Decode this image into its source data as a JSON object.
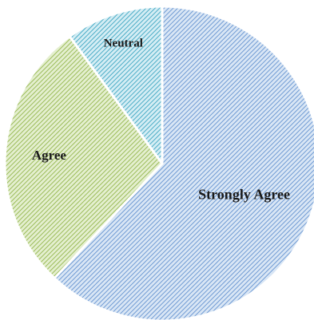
{
  "chart_data": {
    "type": "pie",
    "title": "",
    "slices": [
      {
        "label": "Strongly Agree",
        "value": 62,
        "color": "#6f9ad3",
        "background": "#d9e6f5"
      },
      {
        "label": "Agree",
        "value": 28,
        "color": "#9bbb59",
        "background": "#e4efcf"
      },
      {
        "label": "Neutral",
        "value": 10,
        "color": "#4bacc6",
        "background": "#d4edf4"
      }
    ],
    "legend": "none",
    "data_labels": "inside"
  }
}
